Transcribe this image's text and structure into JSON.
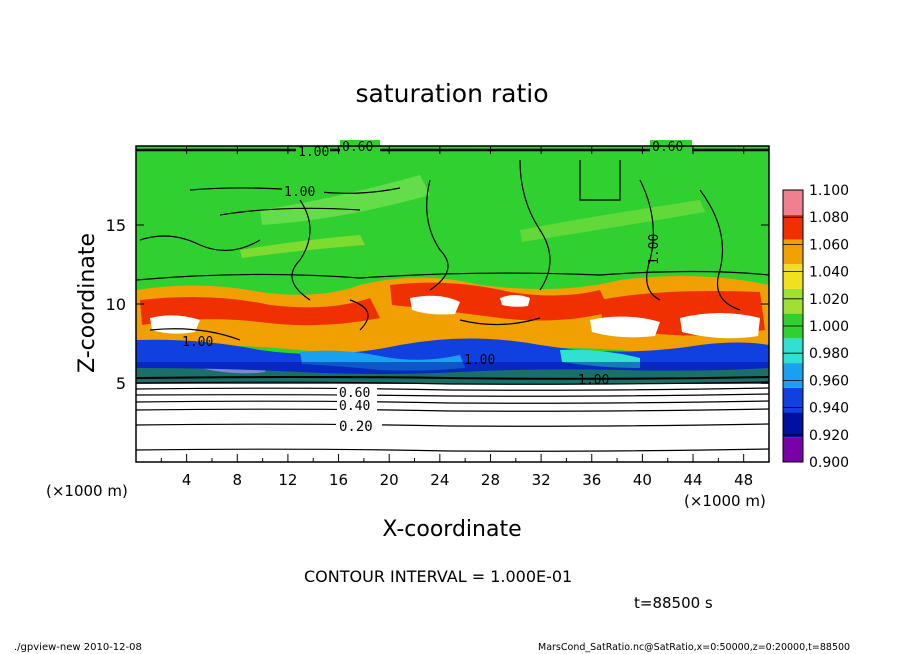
{
  "chart_data": {
    "type": "heatmap",
    "title": "saturation ratio",
    "xlabel": "X-coordinate",
    "ylabel": "Z-coordinate",
    "x_unit": "(×1000 m)",
    "z_unit": "(×1000 m)",
    "xlim": [
      0,
      50
    ],
    "ylim": [
      0,
      20
    ],
    "x_ticks": [
      "4",
      "8",
      "12",
      "16",
      "20",
      "24",
      "28",
      "32",
      "36",
      "40",
      "44",
      "48"
    ],
    "y_ticks": [
      "5",
      "10",
      "15"
    ],
    "contour_labels": [
      "1.00",
      "0.60",
      "1.00",
      "0.60",
      "1.00",
      "1.00",
      "1.00",
      "1.00",
      "0.60",
      "0.40",
      "0.20"
    ],
    "colorbar_labels": [
      "1.100",
      "1.080",
      "1.060",
      "1.040",
      "1.020",
      "1.000",
      "0.980",
      "0.960",
      "0.940",
      "0.920",
      "0.900"
    ],
    "colorbar_range": [
      0.9,
      1.1
    ],
    "colorbar_colors": [
      "#7a00a8",
      "#0010a0",
      "#1040e0",
      "#1aa0f0",
      "#30e0d0",
      "#30d030",
      "#a0e030",
      "#f0e020",
      "#f0a000",
      "#f03000",
      "#f08090"
    ],
    "contour_interval_text": "CONTOUR INTERVAL = 1.000E-01",
    "time_text": "t=88500 s"
  },
  "footer": {
    "left": "./gpview-new  2010-12-08",
    "right": "MarsCond_SatRatio.nc@SatRatio,x=0:50000,z=0:20000,t=88500"
  }
}
